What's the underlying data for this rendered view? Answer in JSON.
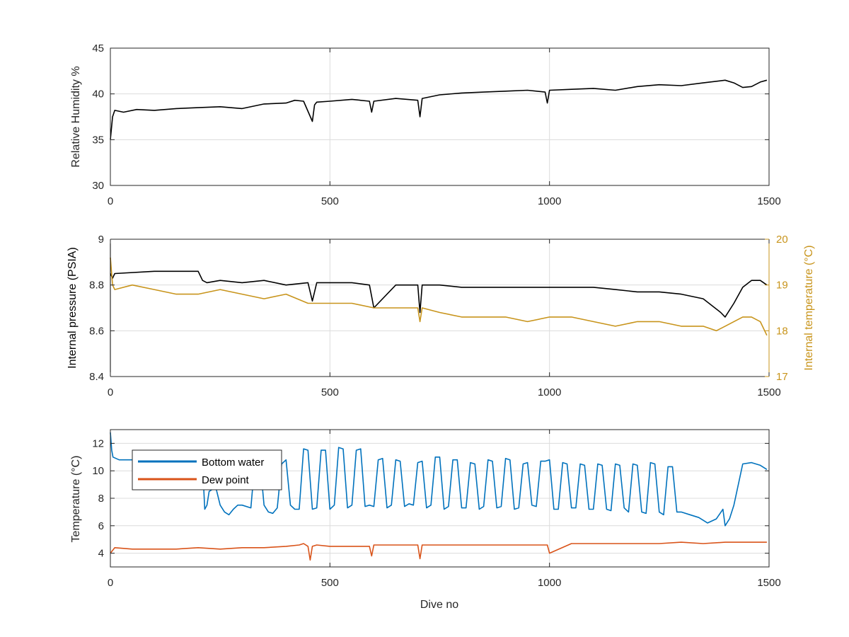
{
  "chart_data": [
    {
      "type": "line",
      "ylabel": "Relative Humidity %",
      "xlim": [
        0,
        1500
      ],
      "ylim": [
        30,
        45
      ],
      "xticks": [
        0,
        500,
        1000,
        1500
      ],
      "yticks": [
        30,
        35,
        40,
        45
      ],
      "grid": true,
      "series": [
        {
          "color": "#000000",
          "axis": "left",
          "x": [
            0,
            5,
            10,
            30,
            60,
            100,
            150,
            200,
            250,
            300,
            350,
            400,
            420,
            440,
            460,
            465,
            470,
            500,
            550,
            590,
            595,
            600,
            650,
            700,
            705,
            710,
            750,
            800,
            850,
            900,
            950,
            990,
            995,
            1000,
            1050,
            1100,
            1150,
            1200,
            1250,
            1300,
            1350,
            1400,
            1420,
            1440,
            1460,
            1480,
            1495
          ],
          "y": [
            35,
            37.5,
            38.2,
            38.0,
            38.3,
            38.2,
            38.4,
            38.5,
            38.6,
            38.4,
            38.9,
            39.0,
            39.3,
            39.2,
            37.0,
            38.8,
            39.1,
            39.2,
            39.4,
            39.2,
            38.0,
            39.2,
            39.5,
            39.3,
            37.5,
            39.5,
            39.9,
            40.1,
            40.2,
            40.3,
            40.4,
            40.2,
            39.0,
            40.4,
            40.5,
            40.6,
            40.4,
            40.8,
            41.0,
            40.9,
            41.2,
            41.5,
            41.2,
            40.7,
            40.8,
            41.3,
            41.5
          ]
        }
      ]
    },
    {
      "type": "line",
      "ylabel": "Internal pressure (PSIA)",
      "y2label": "Internal temperature (°C)",
      "xlim": [
        0,
        1500
      ],
      "ylim": [
        8.4,
        9
      ],
      "y2lim": [
        17,
        20
      ],
      "xticks": [
        0,
        500,
        1000,
        1500
      ],
      "yticks": [
        8.4,
        8.6,
        8.8,
        9
      ],
      "y2ticks": [
        17,
        18,
        19,
        20
      ],
      "grid": true,
      "series": [
        {
          "color": "#000000",
          "axis": "left",
          "x": [
            0,
            5,
            10,
            100,
            200,
            210,
            220,
            250,
            300,
            350,
            400,
            450,
            460,
            470,
            500,
            550,
            590,
            600,
            650,
            700,
            705,
            710,
            750,
            800,
            850,
            900,
            950,
            1000,
            1050,
            1100,
            1150,
            1200,
            1250,
            1300,
            1350,
            1390,
            1400,
            1420,
            1440,
            1460,
            1480,
            1495
          ],
          "y": [
            8.85,
            8.83,
            8.85,
            8.86,
            8.86,
            8.82,
            8.81,
            8.82,
            8.81,
            8.82,
            8.8,
            8.81,
            8.73,
            8.81,
            8.81,
            8.81,
            8.8,
            8.7,
            8.8,
            8.8,
            8.68,
            8.8,
            8.8,
            8.79,
            8.79,
            8.79,
            8.79,
            8.79,
            8.79,
            8.79,
            8.78,
            8.77,
            8.77,
            8.76,
            8.74,
            8.68,
            8.66,
            8.72,
            8.79,
            8.82,
            8.82,
            8.8
          ]
        },
        {
          "color": "#C8941B",
          "axis": "right",
          "x": [
            0,
            5,
            10,
            50,
            100,
            150,
            200,
            250,
            300,
            350,
            400,
            450,
            500,
            550,
            600,
            650,
            700,
            705,
            710,
            750,
            800,
            850,
            900,
            950,
            1000,
            1050,
            1100,
            1150,
            1200,
            1250,
            1300,
            1350,
            1380,
            1400,
            1420,
            1440,
            1460,
            1480,
            1495
          ],
          "y": [
            19.6,
            19.0,
            18.9,
            19.0,
            18.9,
            18.8,
            18.8,
            18.9,
            18.8,
            18.7,
            18.8,
            18.6,
            18.6,
            18.6,
            18.5,
            18.5,
            18.5,
            18.2,
            18.5,
            18.4,
            18.3,
            18.3,
            18.3,
            18.2,
            18.3,
            18.3,
            18.2,
            18.1,
            18.2,
            18.2,
            18.1,
            18.1,
            18.0,
            18.1,
            18.2,
            18.3,
            18.3,
            18.2,
            17.9
          ]
        }
      ]
    },
    {
      "type": "line",
      "xlabel": "Dive no",
      "ylabel": "Temperature (°C)",
      "xlim": [
        0,
        1500
      ],
      "ylim": [
        3,
        13
      ],
      "xticks": [
        0,
        500,
        1000,
        1500
      ],
      "yticks": [
        4,
        6,
        8,
        10,
        12
      ],
      "grid": true,
      "legend": "top-left",
      "series": [
        {
          "name": "Bottom water",
          "color": "#0072BD",
          "axis": "left",
          "x": [
            0,
            3,
            6,
            20,
            50,
            100,
            150,
            200,
            210,
            215,
            220,
            225,
            240,
            250,
            260,
            270,
            280,
            290,
            300,
            320,
            330,
            340,
            350,
            360,
            370,
            380,
            390,
            400,
            410,
            420,
            430,
            440,
            450,
            460,
            470,
            480,
            490,
            500,
            510,
            520,
            530,
            540,
            550,
            560,
            570,
            580,
            590,
            600,
            610,
            620,
            630,
            640,
            650,
            660,
            670,
            680,
            690,
            700,
            710,
            720,
            730,
            740,
            750,
            760,
            770,
            780,
            790,
            800,
            810,
            820,
            830,
            840,
            850,
            860,
            870,
            880,
            890,
            900,
            910,
            920,
            930,
            940,
            950,
            960,
            970,
            980,
            990,
            1000,
            1010,
            1020,
            1030,
            1040,
            1050,
            1060,
            1070,
            1080,
            1090,
            1100,
            1110,
            1120,
            1130,
            1140,
            1150,
            1160,
            1170,
            1180,
            1190,
            1200,
            1210,
            1220,
            1230,
            1240,
            1250,
            1260,
            1270,
            1280,
            1290,
            1300,
            1320,
            1340,
            1360,
            1380,
            1395,
            1400,
            1410,
            1420,
            1440,
            1460,
            1480,
            1495
          ],
          "y": [
            12.8,
            11.5,
            11.0,
            10.8,
            10.8,
            10.7,
            10.6,
            10.6,
            10.5,
            7.2,
            7.5,
            8.5,
            8.8,
            7.5,
            7.0,
            6.8,
            7.2,
            7.5,
            7.5,
            7.3,
            11.0,
            11.0,
            7.5,
            7.0,
            6.9,
            7.3,
            10.5,
            10.8,
            7.5,
            7.2,
            7.2,
            11.6,
            11.5,
            7.2,
            7.3,
            11.5,
            11.5,
            7.2,
            7.5,
            11.7,
            11.6,
            7.3,
            7.5,
            11.5,
            11.6,
            7.4,
            7.5,
            7.4,
            10.8,
            10.9,
            7.3,
            7.5,
            10.8,
            10.7,
            7.4,
            7.6,
            7.5,
            10.6,
            10.7,
            7.3,
            7.5,
            11.0,
            11.0,
            7.2,
            7.4,
            10.8,
            10.8,
            7.3,
            7.3,
            10.6,
            10.5,
            7.2,
            7.4,
            10.8,
            10.7,
            7.3,
            7.4,
            10.9,
            10.8,
            7.2,
            7.3,
            10.5,
            10.6,
            7.5,
            7.4,
            10.7,
            10.7,
            10.8,
            7.2,
            7.2,
            10.6,
            10.5,
            7.3,
            7.3,
            10.5,
            10.4,
            7.2,
            7.2,
            10.5,
            10.4,
            7.2,
            7.1,
            10.5,
            10.4,
            7.3,
            7.0,
            10.5,
            10.4,
            7.0,
            6.9,
            10.6,
            10.5,
            7.0,
            6.8,
            10.3,
            10.3,
            7.0,
            7.0,
            6.8,
            6.6,
            6.2,
            6.5,
            7.2,
            6.0,
            6.5,
            7.5,
            10.5,
            10.6,
            10.4,
            10.1
          ]
        },
        {
          "name": "Dew point",
          "color": "#D95319",
          "axis": "left",
          "x": [
            0,
            5,
            10,
            50,
            100,
            150,
            200,
            250,
            300,
            350,
            400,
            430,
            440,
            450,
            455,
            460,
            470,
            500,
            550,
            590,
            595,
            600,
            650,
            700,
            705,
            710,
            750,
            800,
            850,
            900,
            950,
            995,
            1000,
            1050,
            1100,
            1150,
            1200,
            1250,
            1300,
            1350,
            1400,
            1450,
            1495
          ],
          "y": [
            4.0,
            4.2,
            4.4,
            4.3,
            4.3,
            4.3,
            4.4,
            4.3,
            4.4,
            4.4,
            4.5,
            4.6,
            4.7,
            4.5,
            3.5,
            4.5,
            4.6,
            4.5,
            4.5,
            4.5,
            3.8,
            4.6,
            4.6,
            4.6,
            3.6,
            4.6,
            4.6,
            4.6,
            4.6,
            4.6,
            4.6,
            4.6,
            4.0,
            4.7,
            4.7,
            4.7,
            4.7,
            4.7,
            4.8,
            4.7,
            4.8,
            4.8,
            4.8
          ]
        }
      ]
    }
  ]
}
